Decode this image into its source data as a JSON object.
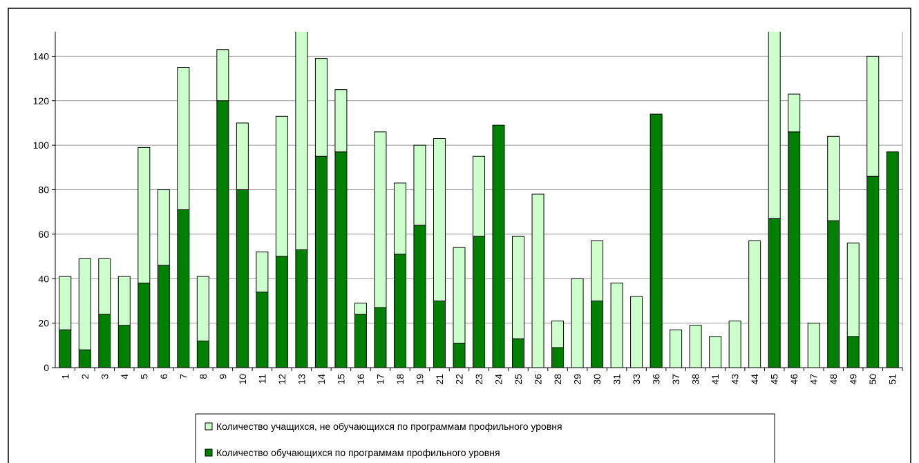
{
  "chart_data": {
    "type": "stacked_bar",
    "categories": [
      "1",
      "2",
      "3",
      "4",
      "5",
      "6",
      "7",
      "8",
      "9",
      "10",
      "11",
      "12",
      "13",
      "14",
      "15",
      "16",
      "17",
      "18",
      "19",
      "21",
      "22",
      "23",
      "24",
      "25",
      "26",
      "28",
      "29",
      "30",
      "31",
      "33",
      "36",
      "37",
      "38",
      "41",
      "43",
      "44",
      "45",
      "46",
      "47",
      "48",
      "49",
      "50",
      "51"
    ],
    "series": [
      {
        "name": "Количество обучающихся по программам профильного уровня",
        "color": "#008000",
        "values": [
          17,
          8,
          24,
          19,
          38,
          46,
          71,
          12,
          120,
          80,
          34,
          50,
          53,
          95,
          97,
          24,
          27,
          51,
          64,
          30,
          11,
          59,
          109,
          13,
          0,
          9,
          0,
          30,
          0,
          0,
          114,
          0,
          0,
          0,
          0,
          0,
          67,
          106,
          0,
          66,
          14,
          86,
          97
        ]
      },
      {
        "name": "Количество учащихся, не обучающихся по программам профильного уровня",
        "color": "#ccffcc",
        "values": [
          24,
          41,
          25,
          22,
          61,
          34,
          64,
          29,
          23,
          30,
          18,
          63,
          107,
          44,
          28,
          5,
          79,
          32,
          36,
          73,
          43,
          36,
          0,
          46,
          78,
          12,
          40,
          27,
          38,
          32,
          0,
          17,
          19,
          14,
          21,
          57,
          90,
          17,
          20,
          38,
          42,
          54,
          0
        ]
      }
    ],
    "ylim": [
      0,
      151
    ],
    "yticks": [
      0,
      20,
      40,
      60,
      80,
      100,
      120,
      140
    ],
    "grid": true
  }
}
